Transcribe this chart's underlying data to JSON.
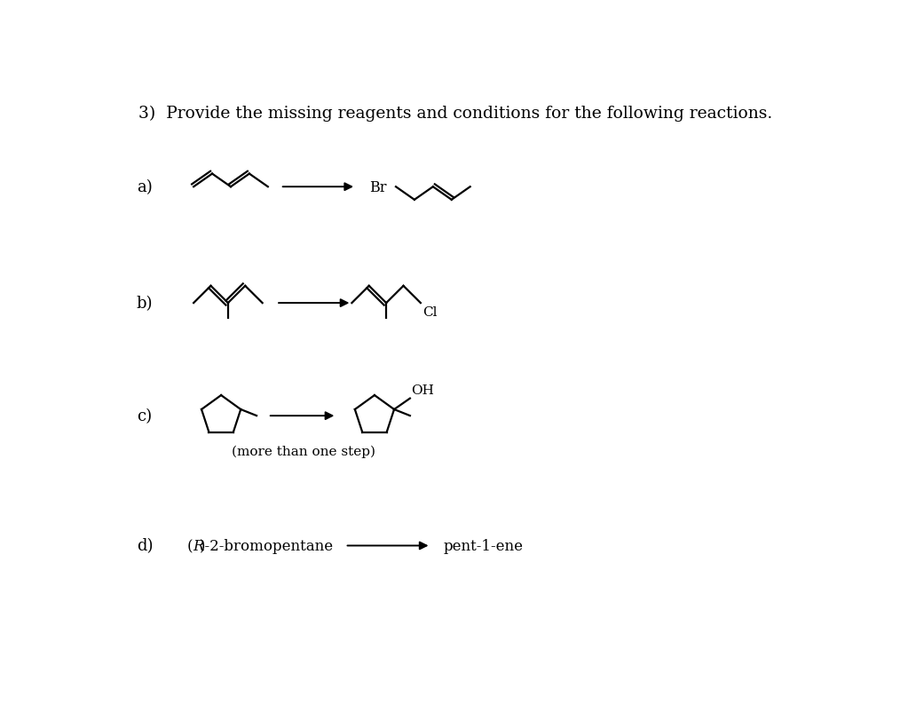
{
  "title": "3)  Provide the missing reagents and conditions for the following reactions.",
  "bg_color": "#ffffff",
  "title_fontsize": 13.5,
  "label_fontsize": 13,
  "mol_lw": 1.6,
  "arrow_lw": 1.4,
  "rows": {
    "a": {
      "y": 6.55,
      "label": "a)"
    },
    "b": {
      "y": 4.85,
      "label": "b)"
    },
    "c": {
      "y": 3.2,
      "label": "c)"
    },
    "d": {
      "y": 1.3,
      "label": "d)"
    }
  }
}
